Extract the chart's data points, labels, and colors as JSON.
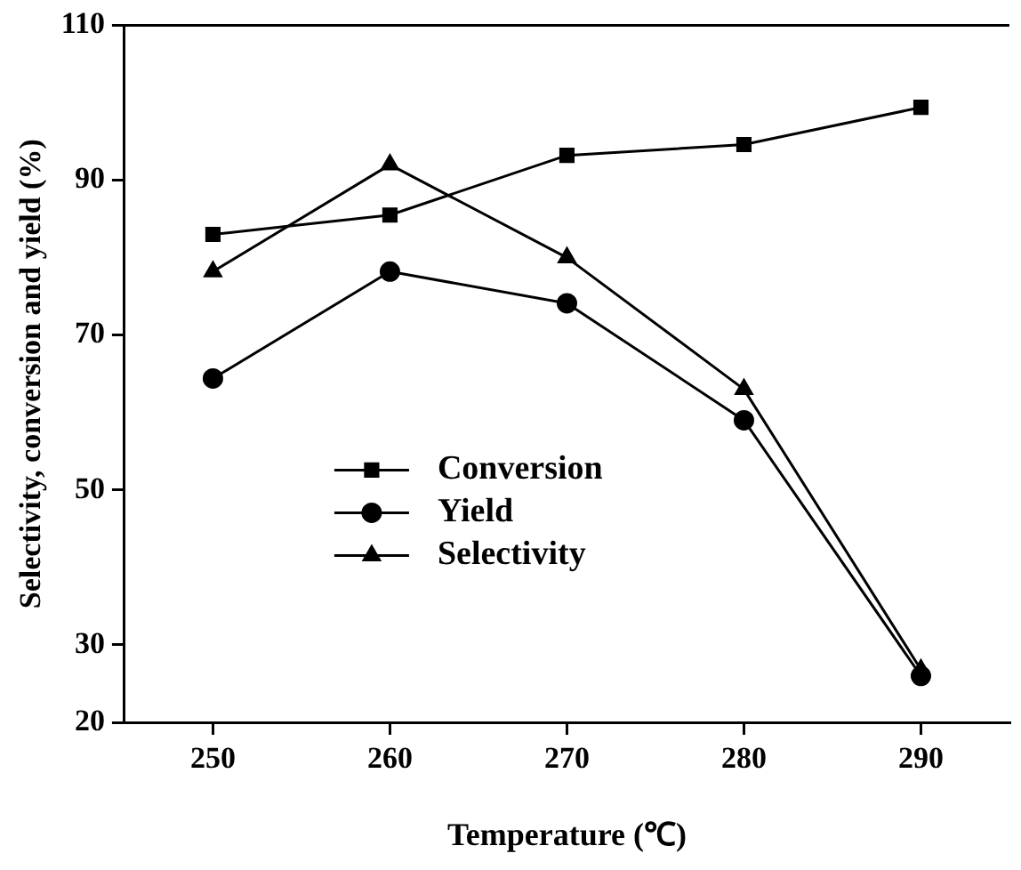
{
  "chart_data": {
    "type": "line",
    "xlabel": "Temperature (℃)",
    "ylabel": "Selectivity, conversion and yield (%)",
    "x": [
      250,
      260,
      270,
      280,
      290
    ],
    "xlim": [
      245,
      295
    ],
    "xticks": [
      250,
      260,
      270,
      280,
      290
    ],
    "ylim": [
      20,
      110
    ],
    "yticks": [
      20,
      30,
      50,
      70,
      90,
      110
    ],
    "grid": false,
    "legend": "left",
    "line_style": "solid",
    "series": [
      {
        "name": "Conversion",
        "color": "#000000",
        "marker": "square",
        "values": [
          83.0,
          85.5,
          93.2,
          94.6,
          99.4
        ]
      },
      {
        "name": "Yield",
        "color": "#000000",
        "marker": "circle",
        "values": [
          64.4,
          78.2,
          74.1,
          59.0,
          26.0
        ]
      },
      {
        "name": "Selectivity",
        "color": "#000000",
        "marker": "triangle",
        "values": [
          78.2,
          92.0,
          80.0,
          63.0,
          26.8
        ]
      }
    ]
  }
}
